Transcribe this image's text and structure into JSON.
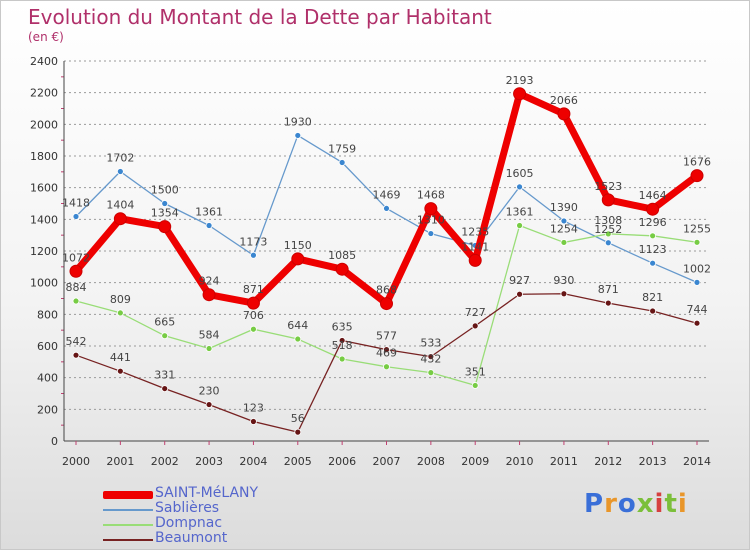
{
  "title": "Evolution du Montant de la Dette par Habitant",
  "subtitle": "(en €)",
  "brand": {
    "text": "Proxiti",
    "letter_colors": [
      "#3a6fd8",
      "#e9962a",
      "#3a6fd8",
      "#7bbf3a",
      "#d64040",
      "#7bbf3a",
      "#e9962a"
    ]
  },
  "colors": {
    "title": "#b0306a",
    "grid": "#9a9a9a",
    "axis_tick_marks": "#c04070"
  },
  "chart_data": {
    "type": "line",
    "title": "Evolution du Montant de la Dette par Habitant",
    "subtitle": "(en €)",
    "xlabel": "",
    "ylabel": "",
    "categories": [
      "2000",
      "2001",
      "2002",
      "2003",
      "2004",
      "2005",
      "2006",
      "2007",
      "2008",
      "2009",
      "2010",
      "2011",
      "2012",
      "2013",
      "2014"
    ],
    "ylim": [
      0,
      2400
    ],
    "yticks": [
      0,
      200,
      400,
      600,
      800,
      1000,
      1200,
      1400,
      1600,
      1800,
      2000,
      2200,
      2400
    ],
    "grid": "horizontal dashed",
    "legend_position": "bottom-left",
    "series": [
      {
        "name": "SAINT-MéLANY",
        "color": "#ee0000",
        "marker_color": "#ee0000",
        "width": "thick",
        "values": [
          1072,
          1404,
          1354,
          924,
          871,
          1150,
          1085,
          868,
          1468,
          1141,
          2193,
          2066,
          1523,
          1464,
          1676
        ]
      },
      {
        "name": "Sablières",
        "color": "#6699cc",
        "marker_color": "#3a86d0",
        "width": "thin",
        "values": [
          1418,
          1702,
          1500,
          1361,
          1173,
          1930,
          1759,
          1469,
          1310,
          1235,
          1605,
          1390,
          1252,
          1123,
          1002
        ]
      },
      {
        "name": "Dompnac",
        "color": "#99dd77",
        "marker_color": "#77cc44",
        "width": "thin",
        "values": [
          884,
          809,
          665,
          584,
          706,
          644,
          518,
          469,
          432,
          351,
          1361,
          1254,
          1308,
          1296,
          1255
        ]
      },
      {
        "name": "Beaumont",
        "color": "#772222",
        "marker_color": "#661515",
        "width": "thin",
        "values": [
          542,
          441,
          331,
          230,
          123,
          56,
          635,
          577,
          533,
          727,
          927,
          930,
          871,
          821,
          744
        ]
      }
    ],
    "value_labels": [
      {
        "series": "SAINT-MéLANY",
        "labels": [
          "1072",
          "1404",
          "1354",
          "924",
          "871",
          "1150",
          "1085",
          "868",
          "1468",
          "1141",
          "2193",
          "2066",
          "1523",
          "1464",
          "1676"
        ]
      },
      {
        "series": "Sablières",
        "labels": [
          "1418",
          "1702",
          "1500",
          "1361",
          "1173",
          "1930",
          "1759",
          "1469",
          "1310",
          "1235",
          "1605",
          "1390",
          "1252",
          "1123",
          "1002"
        ]
      },
      {
        "series": "Dompnac",
        "labels": [
          "884",
          "809",
          "665",
          "584",
          "706",
          "644",
          "518",
          "469",
          "432",
          "351",
          "1361",
          "1254",
          "1308",
          "1296",
          "1255"
        ]
      },
      {
        "series": "Beaumont",
        "labels": [
          "542",
          "441",
          "331",
          "230",
          "123",
          "56",
          "635",
          "577",
          "533",
          "727",
          "927",
          "930",
          "871",
          "821",
          "744"
        ]
      }
    ]
  }
}
